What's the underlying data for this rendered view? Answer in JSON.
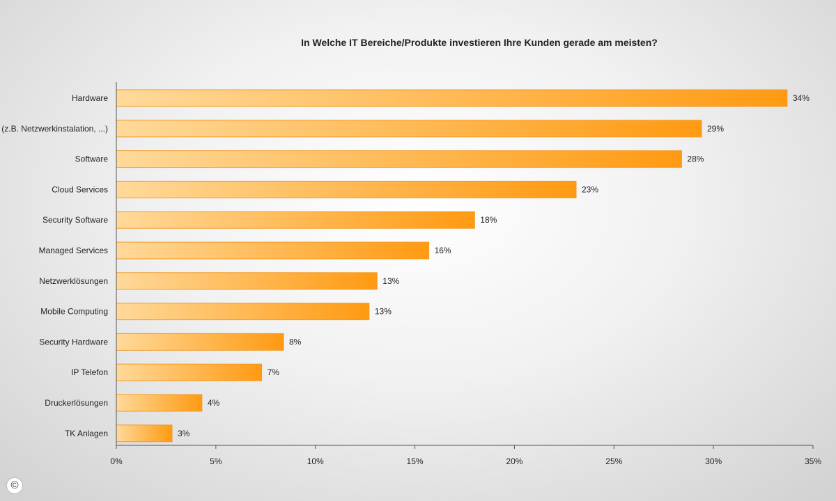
{
  "chart_data": {
    "type": "bar",
    "orientation": "horizontal",
    "title": "In Welche IT Bereiche/Produkte investieren Ihre Kunden gerade am meisten?",
    "categories": [
      "Hardware",
      "IT-Services (z.B. Netzwerkinstalation, ...)",
      "Software",
      "Cloud Services",
      "Security Software",
      "Managed Services",
      "Netzwerklösungen",
      "Mobile Computing",
      "Security Hardware",
      "IP Telefon",
      "Druckerlösungen",
      "TK Anlagen"
    ],
    "values": [
      34,
      29,
      28,
      23,
      18,
      16,
      13,
      13,
      8,
      7,
      4,
      3
    ],
    "value_labels": [
      "34%",
      "29%",
      "28%",
      "23%",
      "18%",
      "16%",
      "13%",
      "13%",
      "8%",
      "7%",
      "4%",
      "3%"
    ],
    "value_exact": [
      33.7,
      29.4,
      28.4,
      23.1,
      18.0,
      15.7,
      13.1,
      12.7,
      8.4,
      7.3,
      4.3,
      2.8
    ],
    "xlim": [
      0,
      35
    ],
    "xticks": [
      0,
      5,
      10,
      15,
      20,
      25,
      30,
      35
    ],
    "xtick_labels": [
      "0%",
      "5%",
      "10%",
      "15%",
      "20%",
      "25%",
      "30%",
      "35%"
    ],
    "xlabel": "",
    "ylabel": "",
    "grid": false,
    "legend": "none",
    "colors": {
      "bar_start": "#ffd99a",
      "bar_end": "#ff9a12",
      "bar_edge": "#f29a22",
      "axis": "#555555",
      "text": "#222222"
    }
  },
  "footer": {
    "copyright_symbol": "©"
  }
}
